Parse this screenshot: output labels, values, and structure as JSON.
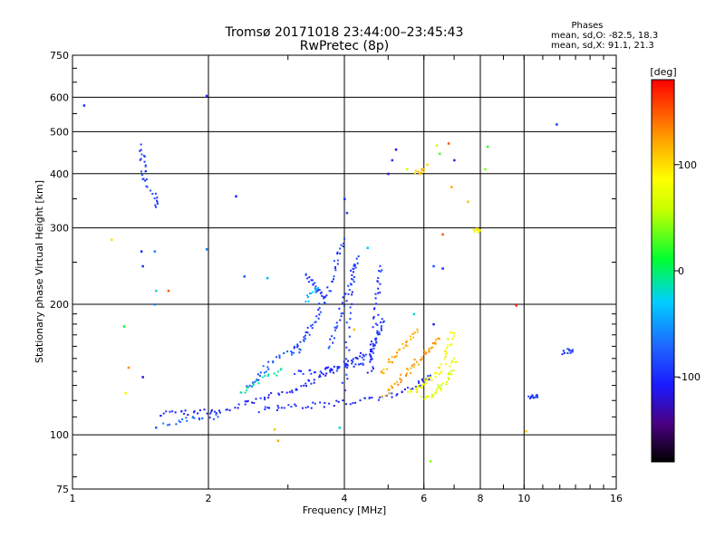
{
  "chart_data": {
    "type": "scatter",
    "title": "Tromsø 20171018 23:44:00–23:45:43",
    "subtitle": "RwPretec (8p)",
    "xlabel": "Frequency [MHz]",
    "ylabel": "Stationary phase Virtual Height [km]",
    "x_scale": "log",
    "y_scale": "log",
    "xlim": [
      1,
      16
    ],
    "ylim": [
      75,
      750
    ],
    "x_ticks": [
      1,
      2,
      4,
      6,
      8,
      10,
      16
    ],
    "x_tick_labels": [
      "1",
      "2",
      "4",
      "6",
      "8",
      "10",
      "16"
    ],
    "y_ticks": [
      75,
      100,
      200,
      300,
      400,
      500,
      600,
      750
    ],
    "y_tick_labels": [
      "75",
      "100",
      "200",
      "300",
      "400",
      "500",
      "600",
      "750"
    ],
    "grid": true,
    "stats": {
      "header": "Phases",
      "line_o": "mean, sd,O: -82.5, 18.3",
      "line_x": "mean, sd,X:  91.1, 21.3"
    },
    "colorbar": {
      "label": "[deg]",
      "range": [
        -180,
        180
      ],
      "ticks": [
        100,
        0,
        -100
      ],
      "tick_labels": [
        "100",
        "0",
        "-100"
      ]
    },
    "traces": [
      {
        "name": "",
        "phase": -105,
        "points": [
          [
            1.55,
            112
          ],
          [
            1.7,
            112
          ],
          [
            1.85,
            113
          ],
          [
            2.0,
            113
          ],
          [
            2.15,
            114
          ],
          [
            2.35,
            117
          ],
          [
            2.55,
            120
          ],
          [
            2.75,
            123
          ],
          [
            3.0,
            126
          ],
          [
            3.2,
            129
          ],
          [
            3.4,
            133
          ],
          [
            3.6,
            137
          ],
          [
            3.8,
            141
          ],
          [
            4.0,
            145
          ],
          [
            4.2,
            149
          ],
          [
            4.4,
            153
          ]
        ]
      },
      {
        "name": "",
        "phase": -100,
        "points": [
          [
            2.6,
            114
          ],
          [
            2.85,
            115
          ],
          [
            3.1,
            116
          ],
          [
            3.4,
            117
          ],
          [
            3.8,
            118
          ],
          [
            4.2,
            119
          ],
          [
            4.6,
            121
          ],
          [
            5.0,
            123
          ],
          [
            5.4,
            126
          ],
          [
            5.8,
            130
          ],
          [
            6.0,
            134
          ],
          [
            6.2,
            137
          ]
        ]
      },
      {
        "name": "",
        "phase": -95,
        "points": [
          [
            3.1,
            139
          ],
          [
            3.35,
            140
          ],
          [
            3.6,
            141
          ],
          [
            3.85,
            142
          ],
          [
            4.1,
            144
          ],
          [
            4.35,
            147
          ],
          [
            4.55,
            152
          ],
          [
            4.65,
            158
          ],
          [
            4.75,
            165
          ],
          [
            4.8,
            175
          ],
          [
            4.85,
            185
          ]
        ]
      },
      {
        "name": "",
        "phase": -80,
        "points": [
          [
            2.45,
            128
          ],
          [
            2.55,
            134
          ],
          [
            2.65,
            141
          ],
          [
            2.8,
            149
          ],
          [
            3.0,
            154
          ],
          [
            3.2,
            157
          ]
        ]
      },
      {
        "name": "",
        "phase": -90,
        "points": [
          [
            3.1,
            157
          ],
          [
            3.2,
            162
          ],
          [
            3.3,
            170
          ],
          [
            3.4,
            180
          ],
          [
            3.5,
            192
          ],
          [
            3.6,
            205
          ],
          [
            3.7,
            220
          ],
          [
            3.8,
            240
          ],
          [
            3.9,
            262
          ],
          [
            4.0,
            283
          ]
        ]
      },
      {
        "name": "",
        "phase": -88,
        "points": [
          [
            3.7,
            160
          ],
          [
            3.8,
            172
          ],
          [
            3.9,
            186
          ],
          [
            4.0,
            202
          ],
          [
            4.1,
            220
          ],
          [
            4.2,
            240
          ],
          [
            4.3,
            258
          ]
        ]
      },
      {
        "name": "",
        "phase": -98,
        "points": [
          [
            4.0,
            128
          ],
          [
            4.05,
            150
          ],
          [
            4.1,
            180
          ],
          [
            4.15,
            215
          ],
          [
            4.2,
            245
          ]
        ]
      },
      {
        "name": "",
        "phase": -100,
        "points": [
          [
            4.55,
            138
          ],
          [
            4.6,
            150
          ],
          [
            4.65,
            165
          ],
          [
            4.7,
            185
          ],
          [
            4.72,
            205
          ],
          [
            4.75,
            225
          ],
          [
            4.8,
            245
          ]
        ]
      },
      {
        "name": "",
        "phase": -92,
        "points": [
          [
            3.3,
            233
          ],
          [
            3.4,
            225
          ],
          [
            3.5,
            216
          ],
          [
            3.6,
            208
          ]
        ]
      },
      {
        "name": "",
        "phase": -40,
        "points": [
          [
            3.3,
            204
          ],
          [
            3.4,
            212
          ],
          [
            3.5,
            218
          ]
        ]
      },
      {
        "name": "",
        "phase": 125,
        "points": [
          [
            4.9,
            124
          ],
          [
            5.1,
            128
          ],
          [
            5.3,
            133
          ],
          [
            5.5,
            139
          ],
          [
            5.7,
            144
          ],
          [
            5.9,
            150
          ],
          [
            6.1,
            156
          ],
          [
            6.3,
            162
          ],
          [
            6.45,
            167
          ]
        ]
      },
      {
        "name": "",
        "phase": 118,
        "points": [
          [
            4.8,
            138
          ],
          [
            5.0,
            145
          ],
          [
            5.2,
            152
          ],
          [
            5.4,
            160
          ],
          [
            5.6,
            168
          ],
          [
            5.8,
            175
          ]
        ]
      },
      {
        "name": "",
        "phase": 85,
        "points": [
          [
            5.6,
            125
          ],
          [
            5.8,
            128
          ],
          [
            6.0,
            131
          ],
          [
            6.2,
            134
          ],
          [
            6.4,
            138
          ],
          [
            6.6,
            145
          ],
          [
            6.75,
            155
          ],
          [
            6.85,
            165
          ],
          [
            6.95,
            172
          ]
        ]
      },
      {
        "name": "",
        "phase": 70,
        "points": [
          [
            6.0,
            121
          ],
          [
            6.2,
            123
          ],
          [
            6.4,
            126
          ],
          [
            6.6,
            130
          ],
          [
            6.8,
            135
          ],
          [
            6.9,
            142
          ],
          [
            7.0,
            150
          ]
        ]
      },
      {
        "name": "",
        "phase": -75,
        "points": [
          [
            1.6,
            105
          ],
          [
            1.75,
            108
          ],
          [
            1.9,
            109
          ],
          [
            2.1,
            110
          ]
        ]
      },
      {
        "name": "",
        "phase": -15,
        "points": [
          [
            2.35,
            125
          ],
          [
            2.5,
            130
          ],
          [
            2.7,
            136
          ],
          [
            2.9,
            142
          ]
        ]
      },
      {
        "name": "",
        "phase": -92,
        "points": [
          [
            1.42,
            462
          ],
          [
            1.43,
            437
          ],
          [
            1.44,
            405
          ],
          [
            1.45,
            380
          ],
          [
            1.52,
            352
          ],
          [
            1.53,
            335
          ]
        ]
      },
      {
        "name": "",
        "phase": -90,
        "points": [
          [
            12.2,
            155
          ],
          [
            12.5,
            156
          ],
          [
            12.8,
            156
          ]
        ]
      },
      {
        "name": "",
        "phase": -95,
        "points": [
          [
            10.3,
            123
          ],
          [
            10.5,
            122
          ],
          [
            10.7,
            122
          ]
        ]
      },
      {
        "name": "",
        "phase": 85,
        "points": [
          [
            7.8,
            297
          ],
          [
            7.9,
            297
          ],
          [
            8.0,
            296
          ]
        ]
      },
      {
        "name": "",
        "phase": 110,
        "points": [
          [
            5.8,
            400
          ],
          [
            5.9,
            405
          ],
          [
            6.0,
            410
          ]
        ]
      }
    ],
    "scatter_points": [
      {
        "x": 1.06,
        "y": 575,
        "phase": -100
      },
      {
        "x": 1.42,
        "y": 265,
        "phase": -100
      },
      {
        "x": 1.43,
        "y": 245,
        "phase": -100
      },
      {
        "x": 1.22,
        "y": 282,
        "phase": 100
      },
      {
        "x": 1.3,
        "y": 178,
        "phase": 10
      },
      {
        "x": 1.33,
        "y": 143,
        "phase": 130
      },
      {
        "x": 1.31,
        "y": 125,
        "phase": 80
      },
      {
        "x": 1.43,
        "y": 136,
        "phase": -120
      },
      {
        "x": 1.52,
        "y": 265,
        "phase": -60
      },
      {
        "x": 1.53,
        "y": 215,
        "phase": -20
      },
      {
        "x": 1.63,
        "y": 215,
        "phase": 150
      },
      {
        "x": 1.52,
        "y": 200,
        "phase": -60
      },
      {
        "x": 1.53,
        "y": 104,
        "phase": -70
      },
      {
        "x": 1.98,
        "y": 605,
        "phase": -100
      },
      {
        "x": 1.98,
        "y": 268,
        "phase": -60
      },
      {
        "x": 2.3,
        "y": 355,
        "phase": -105
      },
      {
        "x": 2.4,
        "y": 232,
        "phase": -80
      },
      {
        "x": 2.7,
        "y": 230,
        "phase": -40
      },
      {
        "x": 2.8,
        "y": 103,
        "phase": 110
      },
      {
        "x": 2.85,
        "y": 97,
        "phase": 120
      },
      {
        "x": 4.0,
        "y": 350,
        "phase": -100
      },
      {
        "x": 4.05,
        "y": 325,
        "phase": -90
      },
      {
        "x": 3.9,
        "y": 104,
        "phase": -20
      },
      {
        "x": 4.5,
        "y": 270,
        "phase": -30
      },
      {
        "x": 5.0,
        "y": 400,
        "phase": -110
      },
      {
        "x": 5.1,
        "y": 430,
        "phase": -100
      },
      {
        "x": 5.2,
        "y": 455,
        "phase": -110
      },
      {
        "x": 5.5,
        "y": 410,
        "phase": 60
      },
      {
        "x": 6.1,
        "y": 420,
        "phase": 100
      },
      {
        "x": 6.4,
        "y": 465,
        "phase": 60
      },
      {
        "x": 6.5,
        "y": 445,
        "phase": 30
      },
      {
        "x": 6.8,
        "y": 470,
        "phase": 150
      },
      {
        "x": 7.0,
        "y": 430,
        "phase": -100
      },
      {
        "x": 6.9,
        "y": 373,
        "phase": 120
      },
      {
        "x": 7.5,
        "y": 345,
        "phase": 110
      },
      {
        "x": 8.2,
        "y": 410,
        "phase": 40
      },
      {
        "x": 8.3,
        "y": 462,
        "phase": 20
      },
      {
        "x": 6.3,
        "y": 245,
        "phase": -80
      },
      {
        "x": 6.6,
        "y": 242,
        "phase": -100
      },
      {
        "x": 6.6,
        "y": 290,
        "phase": 150
      },
      {
        "x": 6.2,
        "y": 87,
        "phase": 40
      },
      {
        "x": 9.6,
        "y": 199,
        "phase": 170
      },
      {
        "x": 10.1,
        "y": 102,
        "phase": 110
      },
      {
        "x": 11.8,
        "y": 520,
        "phase": -90
      },
      {
        "x": 6.3,
        "y": 180,
        "phase": -110
      },
      {
        "x": 5.7,
        "y": 190,
        "phase": -20
      },
      {
        "x": 4.2,
        "y": 175,
        "phase": 110
      }
    ]
  }
}
